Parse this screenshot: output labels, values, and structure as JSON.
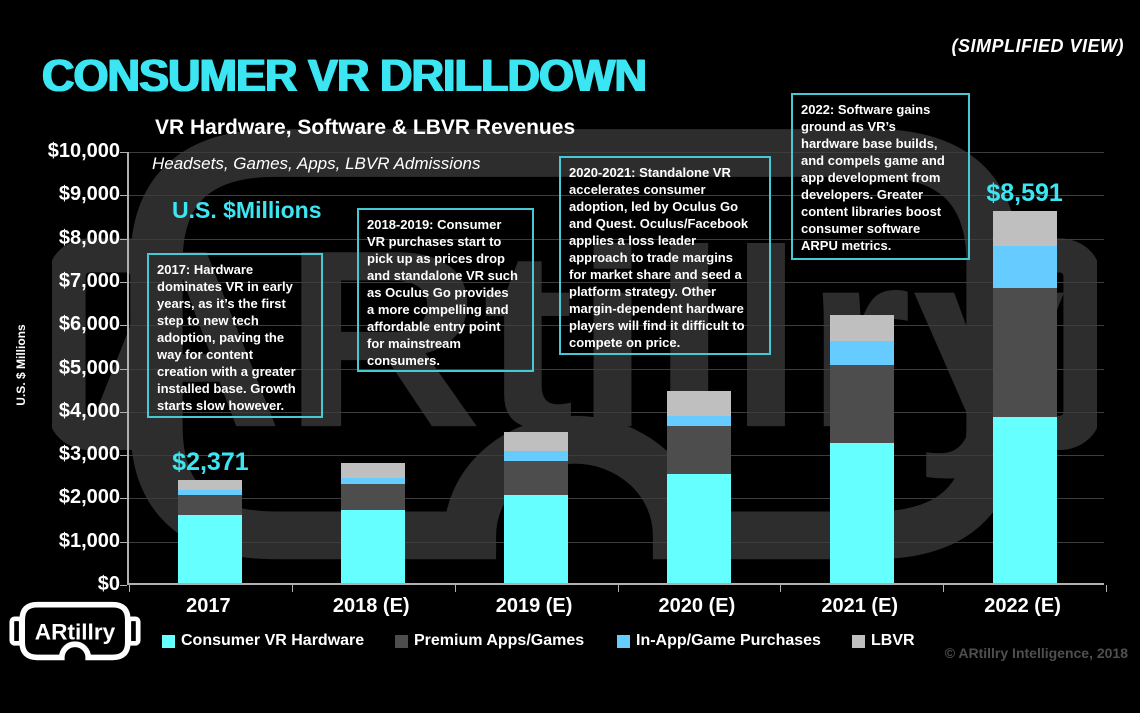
{
  "header": {
    "simplified_view": "(SIMPLIFIED VIEW)",
    "title": "CONSUMER VR DRILLDOWN"
  },
  "chart_header": {
    "title": "VR Hardware, Software & LBVR Revenues",
    "subtitle": "Headsets, Games, Apps, LBVR Admissions",
    "units_label": "U.S. $Millions",
    "y_axis_title": "U.S. $ Millions"
  },
  "annotations": [
    {
      "text": "2017: Hardware\ndominates VR in early\nyears, as it’s the first\nstep to new tech\nadoption, paving the\nway for content\ncreation with a greater\ninstalled base. Growth\nstarts slow however."
    },
    {
      "text": "2018-2019: Consumer\nVR purchases start to\npick up as prices drop\nand standalone VR such\nas Oculus Go provides\na more compelling and\naffordable entry point\nfor mainstream\nconsumers."
    },
    {
      "text": "2020-2021: Standalone VR\naccelerates consumer\nadoption, led by Oculus Go\nand Quest. Oculus/Facebook\napplies a loss leader\napproach to trade margins\nfor market share and seed a\nplatform strategy. Other\nmargin-dependent hardware\nplayers will find it difficult to\ncompete on price."
    },
    {
      "text": "2022: Software gains\nground as VR’s\nhardware base builds,\nand compels game and\napp development from\ndevelopers. Greater\ncontent libraries boost\nconsumer software\nARPU metrics."
    }
  ],
  "chart_data": {
    "type": "bar",
    "stacked": true,
    "title": "VR Hardware, Software & LBVR Revenues",
    "subtitle": "Headsets, Games, Apps, LBVR Admissions",
    "xlabel": "",
    "ylabel": "U.S. $ Millions",
    "ylim": [
      0,
      10000
    ],
    "grid": true,
    "legend_position": "bottom",
    "categories": [
      "2017",
      "2018 (E)",
      "2019 (E)",
      "2020 (E)",
      "2021 (E)",
      "2022 (E)"
    ],
    "y_ticks": [
      "$10,000",
      "$9,000",
      "$8,000",
      "$7,000",
      "$6,000",
      "$5,000",
      "$4,000",
      "$3,000",
      "$2,000",
      "$1,000",
      "$0"
    ],
    "series": [
      {
        "name": "Consumer VR Hardware",
        "color": "#66FFFF",
        "values": [
          1570,
          1690,
          2030,
          2520,
          3230,
          3833
        ]
      },
      {
        "name": "Premium Apps/Games",
        "color": "#4D4D4D",
        "values": [
          465,
          600,
          790,
          1110,
          1800,
          2979
        ]
      },
      {
        "name": "In-App/Game Purchases",
        "color": "#66CCFF",
        "values": [
          115,
          140,
          230,
          230,
          555,
          970
        ]
      },
      {
        "name": "LBVR",
        "color": "#BFBFBF",
        "values": [
          221,
          345,
          440,
          575,
          600,
          809
        ]
      }
    ],
    "totals_estimated": [
      2371,
      2775,
      3490,
      4435,
      6185,
      8591
    ],
    "value_labels": [
      {
        "category_index": 0,
        "text": "$2,371"
      },
      {
        "category_index": 5,
        "text": "$8,591"
      }
    ],
    "colors": {
      "accent_cyan": "#3BE6F2",
      "callout_border": "#46C9D3",
      "gridline": "#3d3d3d",
      "axis_line": "#b0b0b0",
      "watermark": "#2d2d2d"
    }
  },
  "footer": {
    "logo_text": "ARtillry",
    "copyright": "© ARtillry Intelligence, 2018"
  }
}
